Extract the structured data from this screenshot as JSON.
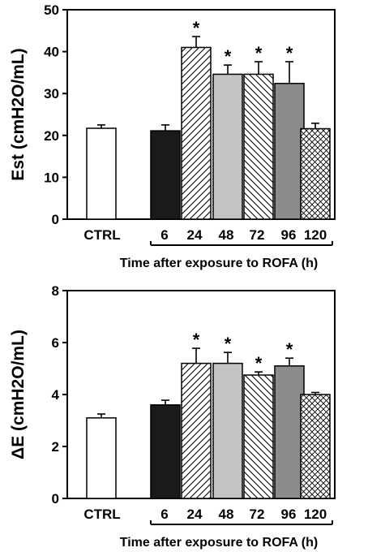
{
  "chart_data": [
    {
      "type": "bar",
      "ylabel": "Est (cmH2O/mL)",
      "xlabel": "Time after exposure to ROFA (h)",
      "ylim": [
        0,
        50
      ],
      "yticks": [
        0,
        10,
        20,
        30,
        40,
        50
      ],
      "categories": [
        "CTRL",
        "6",
        "24",
        "48",
        "72",
        "96",
        "120"
      ],
      "values": [
        21.7,
        21.1,
        41.0,
        34.6,
        34.6,
        32.4,
        21.6
      ],
      "errors": [
        0.8,
        1.4,
        2.6,
        2.2,
        3.0,
        5.2,
        1.3
      ],
      "significant": [
        false,
        false,
        true,
        true,
        true,
        true,
        false
      ],
      "significance_marker": "*",
      "bar_fills": [
        "white",
        "black",
        "diagonal-hatch",
        "light-gray",
        "back-diagonal-hatch",
        "dark-gray",
        "cross-hatch"
      ],
      "grid": false
    },
    {
      "type": "bar",
      "ylabel": "ΔE (cmH2O/mL)",
      "xlabel": "Time after exposure to ROFA (h)",
      "ylim": [
        0,
        8
      ],
      "yticks": [
        0,
        2,
        4,
        6,
        8
      ],
      "categories": [
        "CTRL",
        "6",
        "24",
        "48",
        "72",
        "96",
        "120"
      ],
      "values": [
        3.1,
        3.6,
        5.2,
        5.2,
        4.75,
        5.1,
        4.0
      ],
      "errors": [
        0.15,
        0.18,
        0.58,
        0.42,
        0.12,
        0.3,
        0.08
      ],
      "significant": [
        false,
        false,
        true,
        true,
        true,
        true,
        false
      ],
      "significance_marker": "*",
      "bar_fills": [
        "white",
        "black",
        "diagonal-hatch",
        "light-gray",
        "back-diagonal-hatch",
        "dark-gray",
        "cross-hatch"
      ],
      "grid": false
    }
  ],
  "colors": {
    "black": "#1a1a1a",
    "light_gray": "#c4c4c4",
    "dark_gray": "#8c8c8c",
    "white": "#ffffff"
  }
}
